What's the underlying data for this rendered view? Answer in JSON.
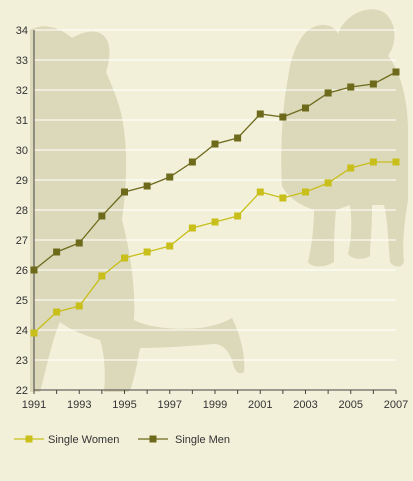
{
  "chart_data": {
    "type": "line",
    "x": [
      1991,
      1992,
      1993,
      1994,
      1995,
      1996,
      1997,
      1998,
      1999,
      2000,
      2001,
      2002,
      2003,
      2004,
      2005,
      2006,
      2007
    ],
    "x_tick_labels": [
      "1991",
      "1993",
      "1995",
      "1997",
      "1999",
      "2001",
      "2003",
      "2005",
      "2007"
    ],
    "y_tick_labels": [
      "22",
      "23",
      "24",
      "25",
      "26",
      "27",
      "28",
      "29",
      "30",
      "31",
      "32",
      "33",
      "34"
    ],
    "ylim": [
      22,
      34
    ],
    "xlim": [
      1991,
      2007
    ],
    "grid": true,
    "legend": "bottom",
    "series": [
      {
        "name": "Single Women",
        "color": "#c8bf1a",
        "values": [
          23.9,
          24.6,
          24.8,
          25.8,
          26.4,
          26.6,
          26.8,
          27.4,
          27.6,
          27.8,
          28.6,
          28.4,
          28.6,
          28.9,
          29.4,
          29.6,
          29.6
        ]
      },
      {
        "name": "Single Men",
        "color": "#6d6a1c",
        "values": [
          26.0,
          26.6,
          26.9,
          27.8,
          28.6,
          28.8,
          29.1,
          29.6,
          30.2,
          30.4,
          31.2,
          31.1,
          31.4,
          31.9,
          32.1,
          32.2,
          32.6
        ]
      }
    ]
  },
  "colors": {
    "background": "#f3f0da",
    "silhouette": "#dcd8ba",
    "grid": "#ffffff",
    "axis": "#444444"
  }
}
